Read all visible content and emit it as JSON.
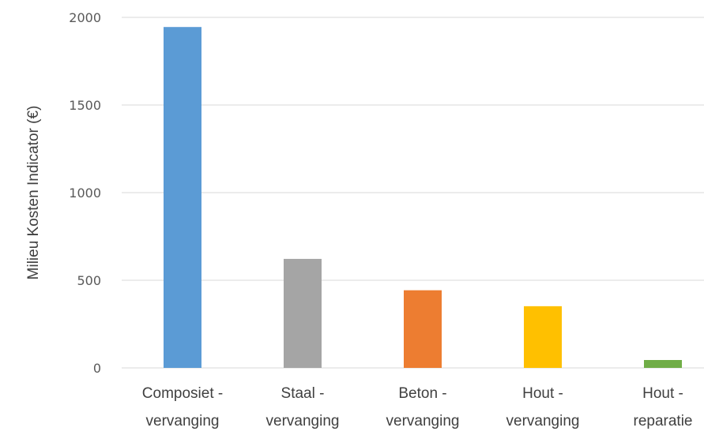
{
  "chart_data": {
    "type": "bar",
    "title": "",
    "xlabel": "",
    "ylabel": "Milieu Kosten Indicator (€)",
    "ylim": [
      0,
      2000
    ],
    "yticks": [
      0,
      500,
      1000,
      1500,
      2000
    ],
    "grid": true,
    "legend": "none",
    "categories": [
      [
        "Composiet -",
        "vervanging"
      ],
      [
        "Staal -",
        "vervanging"
      ],
      [
        "Beton -",
        "vervanging"
      ],
      [
        "Hout -",
        "vervanging"
      ],
      [
        "Hout -",
        "reparatie"
      ]
    ],
    "values": [
      1945,
      622,
      443,
      352,
      45
    ],
    "colors": [
      "#5b9bd5",
      "#a5a5a5",
      "#ed7d31",
      "#ffc000",
      "#70ad47"
    ]
  }
}
